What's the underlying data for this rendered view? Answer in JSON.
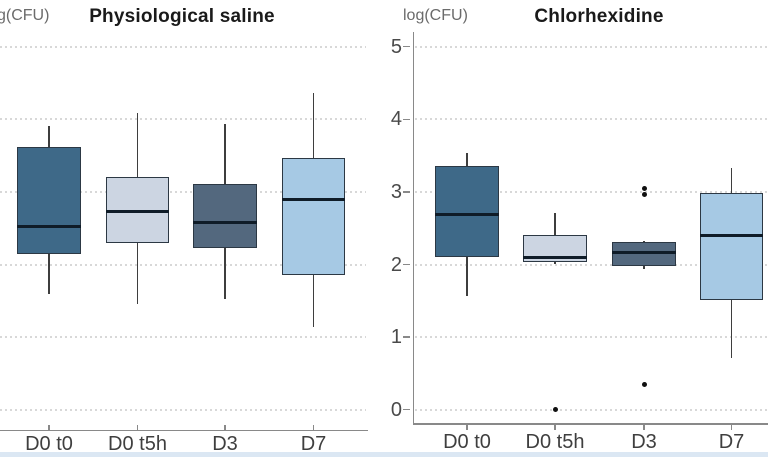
{
  "figure": {
    "type": "side-by-side boxplots",
    "background": "#ffffff"
  },
  "colors": {
    "grid": "#d8d8d8",
    "axis": "#898989",
    "box_border": "#2c3844",
    "median": "#0f1c28",
    "whisker": "#3e3e3e",
    "outlier": "#101010",
    "bottom_strip": "#dbe7f3",
    "fill_d0t0": "#3e6988",
    "fill_d0t5h": "#ccd5e2",
    "fill_d3": "#53687e",
    "fill_d7": "#a6c9e4"
  },
  "chart_data": [
    {
      "type": "boxplot",
      "title": "Physiological saline",
      "ylabel": "g(CFU)",
      "categories": [
        "D0 t0",
        "D0 t5h",
        "D3",
        "D7"
      ],
      "ylim": [
        0,
        5
      ],
      "y_tick_values": [
        0,
        1,
        2,
        3,
        4,
        5
      ],
      "y_tick_labels": [],
      "y_axis_visible": false,
      "grid": "dotted horizontal",
      "series": [
        {
          "category": "D0 t0",
          "whisker_low": 1.59,
          "q1": 2.14,
          "median": 2.53,
          "q3": 3.62,
          "whisker_high": 3.91,
          "outliers": [],
          "fill": "#3e6988"
        },
        {
          "category": "D0 t5h",
          "whisker_low": 1.46,
          "q1": 2.29,
          "median": 2.73,
          "q3": 3.21,
          "whisker_high": 4.09,
          "outliers": [],
          "fill": "#ccd5e2"
        },
        {
          "category": "D3",
          "whisker_low": 1.53,
          "q1": 2.23,
          "median": 2.58,
          "q3": 3.11,
          "whisker_high": 3.93,
          "outliers": [],
          "fill": "#53687e"
        },
        {
          "category": "D7",
          "whisker_low": 1.14,
          "q1": 1.86,
          "median": 2.89,
          "q3": 3.47,
          "whisker_high": 4.36,
          "outliers": [],
          "fill": "#a6c9e4"
        }
      ]
    },
    {
      "type": "boxplot",
      "title": "Chlorhexidine",
      "ylabel": "log(CFU)",
      "categories": [
        "D0 t0",
        "D0 t5h",
        "D3",
        "D7"
      ],
      "ylim": [
        0,
        5
      ],
      "y_tick_values": [
        0,
        1,
        2,
        3,
        4,
        5
      ],
      "y_tick_labels": [
        "0",
        "1",
        "2",
        "3",
        "4",
        "5"
      ],
      "y_axis_visible": true,
      "grid": "dotted horizontal",
      "series": [
        {
          "category": "D0 t0",
          "whisker_low": 1.56,
          "q1": 2.11,
          "median": 2.69,
          "q3": 3.35,
          "whisker_high": 3.54,
          "outliers": [],
          "fill": "#3e6988"
        },
        {
          "category": "D0 t5h",
          "whisker_low": 2.0,
          "q1": 2.03,
          "median": 2.1,
          "q3": 2.41,
          "whisker_high": 2.71,
          "outliers": [
            0.0
          ],
          "fill": "#ccd5e2"
        },
        {
          "category": "D3",
          "whisker_low": 1.94,
          "q1": 1.98,
          "median": 2.17,
          "q3": 2.31,
          "whisker_high": 2.33,
          "outliers": [
            3.05,
            2.97,
            0.35
          ],
          "fill": "#53687e"
        },
        {
          "category": "D7",
          "whisker_low": 0.71,
          "q1": 1.51,
          "median": 2.4,
          "q3": 2.99,
          "whisker_high": 3.33,
          "outliers": [],
          "fill": "#a6c9e4"
        }
      ]
    }
  ]
}
